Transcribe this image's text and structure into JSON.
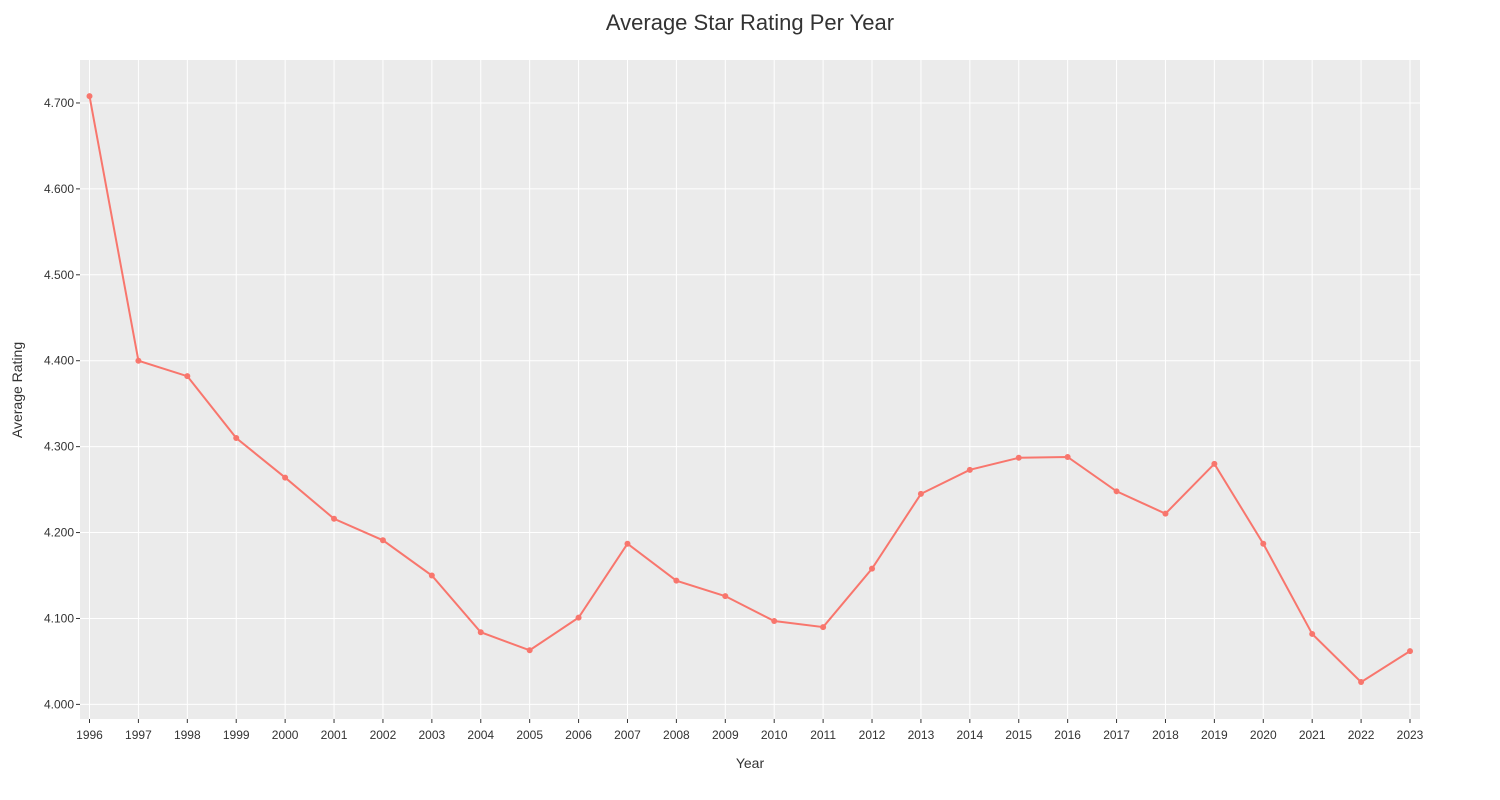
{
  "chart_data": {
    "type": "line",
    "title": "Average Star Rating Per Year",
    "xlabel": "Year",
    "ylabel": "Average Rating",
    "x": [
      "1996",
      "1997",
      "1998",
      "1999",
      "2000",
      "2001",
      "2002",
      "2003",
      "2004",
      "2005",
      "2006",
      "2007",
      "2008",
      "2009",
      "2010",
      "2011",
      "2012",
      "2013",
      "2014",
      "2015",
      "2016",
      "2017",
      "2018",
      "2019",
      "2020",
      "2021",
      "2022",
      "2023"
    ],
    "series": [
      {
        "values": [
          4.708,
          4.4,
          4.382,
          4.31,
          4.264,
          4.216,
          4.191,
          4.15,
          4.084,
          4.063,
          4.101,
          4.187,
          4.144,
          4.126,
          4.097,
          4.09,
          4.158,
          4.245,
          4.273,
          4.287,
          4.288,
          4.248,
          4.222,
          4.28,
          4.187,
          4.082,
          4.026,
          4.062
        ]
      }
    ],
    "yticks": [
      "4.000",
      "4.100",
      "4.200",
      "4.300",
      "4.400",
      "4.500",
      "4.600",
      "4.700"
    ],
    "ylim": [
      3.983,
      4.75
    ],
    "grid": true,
    "colors": {
      "line": "#F8766D",
      "plot_background": "#EBEBEB",
      "grid": "#FFFFFF"
    }
  }
}
